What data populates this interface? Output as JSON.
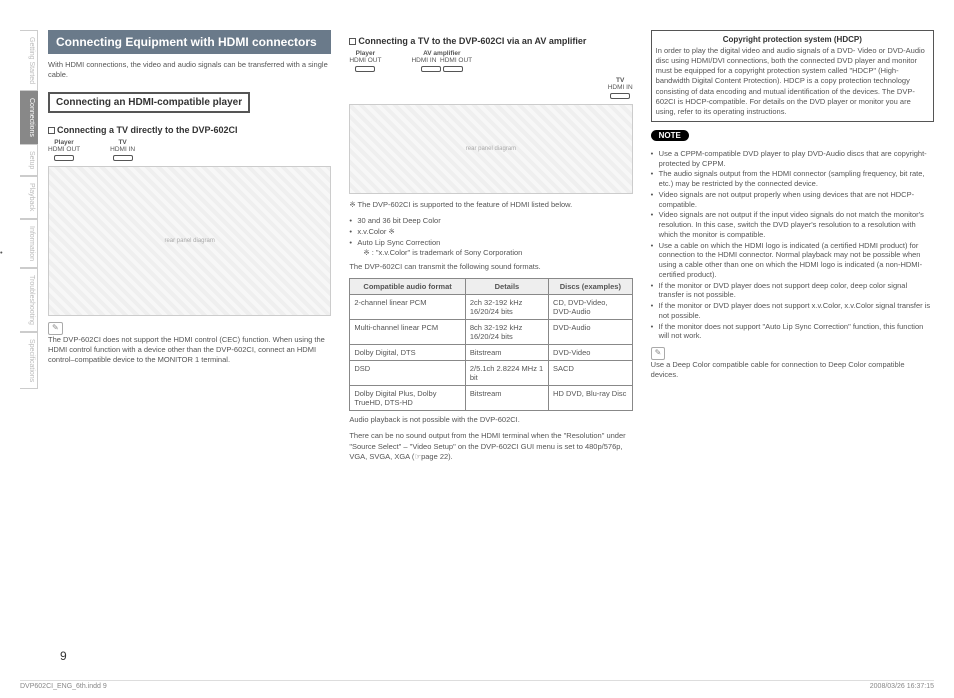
{
  "sideTabs": [
    "Getting Started",
    "Connections",
    "Setup",
    "Playback",
    "Information",
    "Troubleshooting",
    "Specifications"
  ],
  "activeTabIndex": 1,
  "col1": {
    "header": "Connecting Equipment with HDMI connectors",
    "intro": "With HDMI connections, the video and audio signals can be transferred with a single cable.",
    "subHeader": "Connecting an HDMI-compatible player",
    "diag1Title": "Connecting a TV directly to the DVP-602CI",
    "diag1Labels": {
      "player": "Player",
      "playerPort": "HDMI OUT",
      "tv": "TV",
      "tvPort": "HDMI IN"
    },
    "noteIcon": "✎",
    "note": "The DVP-602CI does not support the HDMI control (CEC) function. When using the HDMI control function with a device other than the DVP-602CI, connect an HDMI control–compatible device to the MONITOR 1 terminal."
  },
  "col2": {
    "diag2Title": "Connecting a TV to the DVP-602CI via an AV amplifier",
    "diag2Labels": {
      "player": "Player",
      "playerPort": "HDMI OUT",
      "amp": "AV amplifier",
      "ampIn": "HDMI IN",
      "ampOut": "HDMI OUT",
      "tv": "TV",
      "tvPort": "HDMI IN"
    },
    "featuresIntro": "※ The DVP-602CI is supported to the feature of HDMI listed below.",
    "features": [
      "30 and 36 bit Deep Color",
      "x.v.Color ※",
      "Auto Lip Sync Correction",
      "※ : \"x.v.Color\" is trademark of Sony Corporation"
    ],
    "tableIntro": "The DVP-602CI can transmit the following sound formats.",
    "tableHeaders": [
      "Compatible audio format",
      "Details",
      "Discs (examples)"
    ],
    "tableRows": [
      [
        "2-channel linear PCM",
        "2ch 32-192 kHz 16/20/24 bits",
        "CD, DVD-Video, DVD-Audio"
      ],
      [
        "Multi-channel linear PCM",
        "8ch 32-192 kHz 16/20/24 bits",
        "DVD-Audio"
      ],
      [
        "Dolby Digital, DTS",
        "Bitstream",
        "DVD-Video"
      ],
      [
        "DSD",
        "2/5.1ch 2.8224 MHz 1 bit",
        "SACD"
      ],
      [
        "Dolby Digital Plus, Dolby TrueHD, DTS-HD",
        "Bitstream",
        "HD DVD, Blu-ray Disc"
      ]
    ],
    "tableFoot1": "Audio playback is not possible with the DVP-602CI.",
    "tableFoot2": "There can be no sound output from the HDMI terminal when the \"Resolution\" under \"Source Select\" – \"Video Setup\" on the DVP-602CI GUI menu is set to 480p/576p, VGA, SVGA, XGA (☞page 22)."
  },
  "col3": {
    "boxTitle": "Copyright protection system (HDCP)",
    "boxText": "In order to play the digital video and audio signals of a DVD- Video or DVD-Audio disc using HDMI/DVI connections, both the connected DVD player and monitor must be equipped for a copyright protection system called \"HDCP\" (High-bandwidth Digital Content Protection). HDCP is a copy protection technology consisting of data encoding and mutual identification of the devices.\nThe DVP-602CI is HDCP-compatible. For details on the DVD player or monitor you are using, refer to its operating instructions.",
    "notePill": "NOTE",
    "notes": [
      "Use a CPPM-compatible DVD player to play DVD-Audio discs that are copyright-protected by CPPM.",
      "The audio signals output from the HDMI connector (sampling frequency, bit rate, etc.) may be restricted by the connected device.",
      "Video signals are not output properly when using devices that are not HDCP-compatible.",
      "Video signals are not output if the input video signals do not match the monitor's resolution. In this case, switch the DVD player's resolution to a resolution with which the monitor is compatible.",
      "Use a cable on which the HDMI logo is indicated (a certified HDMI product) for connection to the HDMI connector. Normal playback may not be possible when using a cable other than one on which the HDMI logo is indicated (a non-HDMI-certified product).",
      "If the monitor or DVD player does not support deep color, deep color signal transfer is not possible.",
      "If the monitor or DVD player does not support x.v.Color, x.v.Color signal transfer is not possible.",
      "If the monitor does not support \"Auto Lip Sync Correction\" function, this function will not work."
    ],
    "tipIcon": "✎",
    "tip": "Use a Deep Color compatible cable for connection to Deep Color compatible devices."
  },
  "pageNumber": "9",
  "footer": {
    "left": "DVP602CI_ENG_6th.indd   9",
    "right": "2008/03/26   16:37:15"
  }
}
